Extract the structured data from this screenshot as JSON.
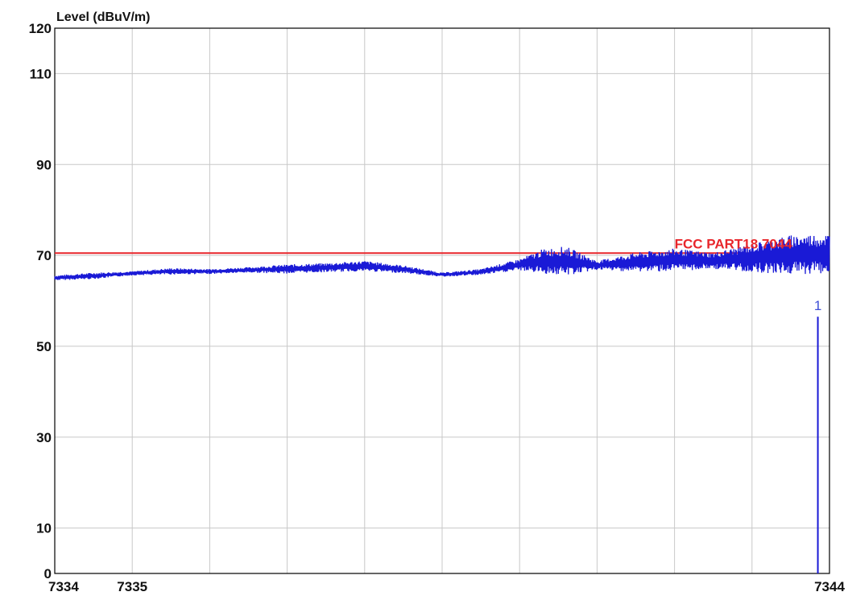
{
  "chart_data": {
    "type": "line",
    "ylabel": "Level (dBuV/m)",
    "xlabel": "",
    "ylim": [
      0,
      120
    ],
    "xlim": [
      7334,
      7344
    ],
    "y_ticks": [
      "0",
      "10",
      "30",
      "50",
      "70",
      "90",
      "110",
      "120"
    ],
    "y_tick_values": [
      0,
      10,
      30,
      50,
      70,
      90,
      110,
      120
    ],
    "x_ticks": [
      "7334",
      "7335",
      "7344"
    ],
    "x_tick_values": [
      7334,
      7335,
      7344
    ],
    "grid": true,
    "colors": {
      "trace": "#1a1ad6",
      "limit": "#e8262b",
      "marker": "#3d4ed6",
      "grid": "#c8c8c8"
    },
    "limit_line": {
      "label": "FCC PART18 7044",
      "value": 70.5
    },
    "trace_envelope": {
      "x": [
        7334.0,
        7334.5,
        7335.0,
        7335.5,
        7336.0,
        7336.5,
        7337.0,
        7337.5,
        7338.0,
        7338.5,
        7339.0,
        7339.5,
        7340.0,
        7340.3,
        7340.6,
        7341.0,
        7341.5,
        7342.0,
        7342.5,
        7343.0,
        7343.5,
        7344.0
      ],
      "min": [
        64.5,
        64.8,
        65.6,
        65.8,
        65.9,
        66.2,
        66.0,
        66.3,
        66.5,
        66.1,
        65.3,
        65.7,
        66.7,
        66.0,
        65.5,
        66.8,
        66.4,
        66.5,
        67.0,
        66.3,
        65.8,
        66.0
      ],
      "max": [
        65.6,
        66.2,
        66.5,
        67.2,
        67.0,
        67.4,
        68.0,
        68.3,
        68.8,
        67.8,
        66.2,
        67.0,
        69.2,
        71.4,
        72.0,
        68.8,
        70.6,
        71.5,
        70.6,
        72.6,
        74.5,
        74.8
      ]
    },
    "marker": {
      "label": "1",
      "x": 7343.85,
      "y": 56.5
    }
  }
}
